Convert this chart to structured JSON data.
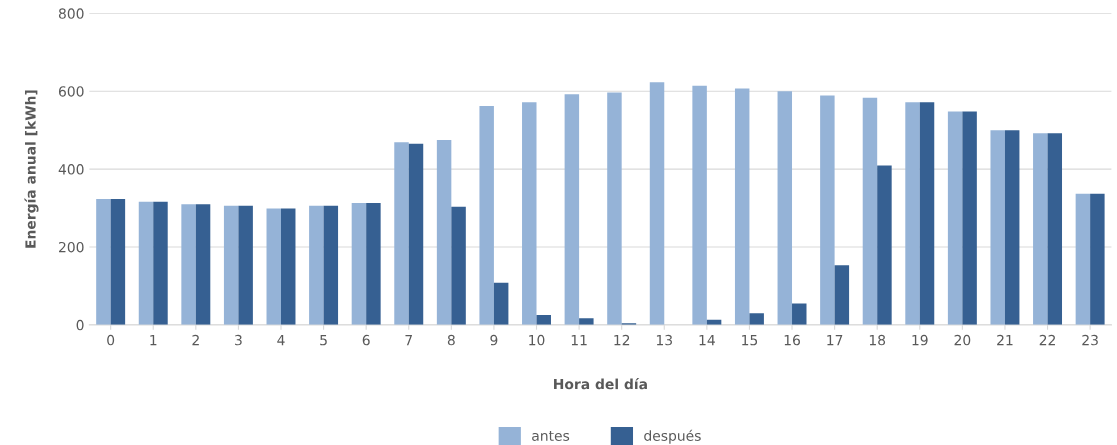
{
  "chart_data": {
    "type": "bar",
    "xlabel": "Hora del día",
    "ylabel": "Energía anual [kWh]",
    "categories": [
      "0",
      "1",
      "2",
      "3",
      "4",
      "5",
      "6",
      "7",
      "8",
      "9",
      "10",
      "11",
      "12",
      "13",
      "14",
      "15",
      "16",
      "17",
      "18",
      "19",
      "20",
      "21",
      "22",
      "23"
    ],
    "series": [
      {
        "name": "antes",
        "color": "#95b3d7",
        "values": [
          323,
          316,
          310,
          306,
          299,
          306,
          313,
          469,
          475,
          562,
          572,
          592,
          597,
          623,
          614,
          607,
          600,
          589,
          583,
          572,
          548,
          500,
          492,
          337
        ]
      },
      {
        "name": "después",
        "color": "#366092",
        "values": [
          323,
          316,
          310,
          306,
          299,
          306,
          313,
          465,
          303,
          108,
          25,
          17,
          4,
          0,
          13,
          30,
          55,
          153,
          409,
          572,
          548,
          500,
          492,
          337
        ]
      }
    ],
    "ylim": [
      0,
      800
    ],
    "yticks": [
      0,
      200,
      400,
      600,
      800
    ],
    "grid": "y",
    "legend": "bottom"
  }
}
